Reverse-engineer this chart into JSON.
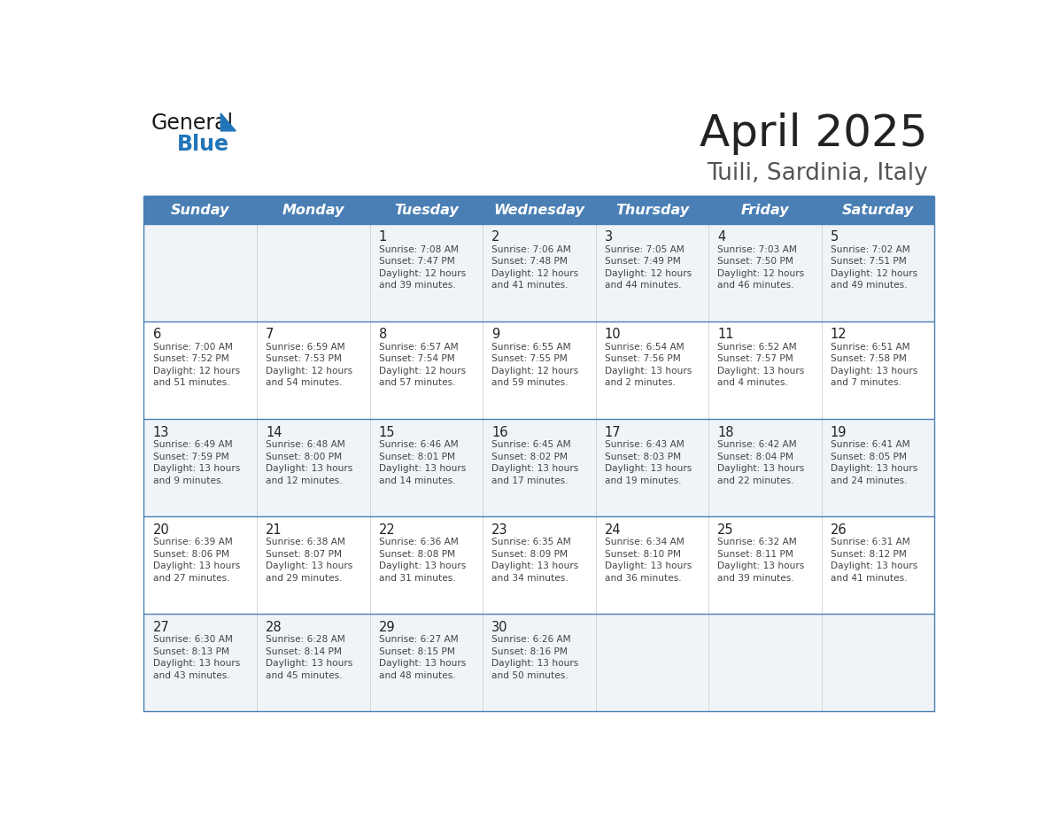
{
  "title": "April 2025",
  "subtitle": "Tuili, Sardinia, Italy",
  "header_bg_color": "#4a7fb5",
  "header_text_color": "#ffffff",
  "day_names": [
    "Sunday",
    "Monday",
    "Tuesday",
    "Wednesday",
    "Thursday",
    "Friday",
    "Saturday"
  ],
  "row_bg_light": "#f0f4f8",
  "row_bg_white": "#ffffff",
  "cell_border_color": "#4a7fb5",
  "day_number_color": "#222222",
  "day_text_color": "#444444",
  "title_color": "#222222",
  "subtitle_color": "#555555",
  "weeks": [
    {
      "days": [
        {
          "day": null,
          "col": 0
        },
        {
          "day": null,
          "col": 1
        },
        {
          "day": 1,
          "col": 2,
          "sunrise": "7:08 AM",
          "sunset": "7:47 PM",
          "daylight": "12 hours and 39 minutes."
        },
        {
          "day": 2,
          "col": 3,
          "sunrise": "7:06 AM",
          "sunset": "7:48 PM",
          "daylight": "12 hours and 41 minutes."
        },
        {
          "day": 3,
          "col": 4,
          "sunrise": "7:05 AM",
          "sunset": "7:49 PM",
          "daylight": "12 hours and 44 minutes."
        },
        {
          "day": 4,
          "col": 5,
          "sunrise": "7:03 AM",
          "sunset": "7:50 PM",
          "daylight": "12 hours and 46 minutes."
        },
        {
          "day": 5,
          "col": 6,
          "sunrise": "7:02 AM",
          "sunset": "7:51 PM",
          "daylight": "12 hours and 49 minutes."
        }
      ]
    },
    {
      "days": [
        {
          "day": 6,
          "col": 0,
          "sunrise": "7:00 AM",
          "sunset": "7:52 PM",
          "daylight": "12 hours and 51 minutes."
        },
        {
          "day": 7,
          "col": 1,
          "sunrise": "6:59 AM",
          "sunset": "7:53 PM",
          "daylight": "12 hours and 54 minutes."
        },
        {
          "day": 8,
          "col": 2,
          "sunrise": "6:57 AM",
          "sunset": "7:54 PM",
          "daylight": "12 hours and 57 minutes."
        },
        {
          "day": 9,
          "col": 3,
          "sunrise": "6:55 AM",
          "sunset": "7:55 PM",
          "daylight": "12 hours and 59 minutes."
        },
        {
          "day": 10,
          "col": 4,
          "sunrise": "6:54 AM",
          "sunset": "7:56 PM",
          "daylight": "13 hours and 2 minutes."
        },
        {
          "day": 11,
          "col": 5,
          "sunrise": "6:52 AM",
          "sunset": "7:57 PM",
          "daylight": "13 hours and 4 minutes."
        },
        {
          "day": 12,
          "col": 6,
          "sunrise": "6:51 AM",
          "sunset": "7:58 PM",
          "daylight": "13 hours and 7 minutes."
        }
      ]
    },
    {
      "days": [
        {
          "day": 13,
          "col": 0,
          "sunrise": "6:49 AM",
          "sunset": "7:59 PM",
          "daylight": "13 hours and 9 minutes."
        },
        {
          "day": 14,
          "col": 1,
          "sunrise": "6:48 AM",
          "sunset": "8:00 PM",
          "daylight": "13 hours and 12 minutes."
        },
        {
          "day": 15,
          "col": 2,
          "sunrise": "6:46 AM",
          "sunset": "8:01 PM",
          "daylight": "13 hours and 14 minutes."
        },
        {
          "day": 16,
          "col": 3,
          "sunrise": "6:45 AM",
          "sunset": "8:02 PM",
          "daylight": "13 hours and 17 minutes."
        },
        {
          "day": 17,
          "col": 4,
          "sunrise": "6:43 AM",
          "sunset": "8:03 PM",
          "daylight": "13 hours and 19 minutes."
        },
        {
          "day": 18,
          "col": 5,
          "sunrise": "6:42 AM",
          "sunset": "8:04 PM",
          "daylight": "13 hours and 22 minutes."
        },
        {
          "day": 19,
          "col": 6,
          "sunrise": "6:41 AM",
          "sunset": "8:05 PM",
          "daylight": "13 hours and 24 minutes."
        }
      ]
    },
    {
      "days": [
        {
          "day": 20,
          "col": 0,
          "sunrise": "6:39 AM",
          "sunset": "8:06 PM",
          "daylight": "13 hours and 27 minutes."
        },
        {
          "day": 21,
          "col": 1,
          "sunrise": "6:38 AM",
          "sunset": "8:07 PM",
          "daylight": "13 hours and 29 minutes."
        },
        {
          "day": 22,
          "col": 2,
          "sunrise": "6:36 AM",
          "sunset": "8:08 PM",
          "daylight": "13 hours and 31 minutes."
        },
        {
          "day": 23,
          "col": 3,
          "sunrise": "6:35 AM",
          "sunset": "8:09 PM",
          "daylight": "13 hours and 34 minutes."
        },
        {
          "day": 24,
          "col": 4,
          "sunrise": "6:34 AM",
          "sunset": "8:10 PM",
          "daylight": "13 hours and 36 minutes."
        },
        {
          "day": 25,
          "col": 5,
          "sunrise": "6:32 AM",
          "sunset": "8:11 PM",
          "daylight": "13 hours and 39 minutes."
        },
        {
          "day": 26,
          "col": 6,
          "sunrise": "6:31 AM",
          "sunset": "8:12 PM",
          "daylight": "13 hours and 41 minutes."
        }
      ]
    },
    {
      "days": [
        {
          "day": 27,
          "col": 0,
          "sunrise": "6:30 AM",
          "sunset": "8:13 PM",
          "daylight": "13 hours and 43 minutes."
        },
        {
          "day": 28,
          "col": 1,
          "sunrise": "6:28 AM",
          "sunset": "8:14 PM",
          "daylight": "13 hours and 45 minutes."
        },
        {
          "day": 29,
          "col": 2,
          "sunrise": "6:27 AM",
          "sunset": "8:15 PM",
          "daylight": "13 hours and 48 minutes."
        },
        {
          "day": 30,
          "col": 3,
          "sunrise": "6:26 AM",
          "sunset": "8:16 PM",
          "daylight": "13 hours and 50 minutes."
        },
        {
          "day": null,
          "col": 4
        },
        {
          "day": null,
          "col": 5
        },
        {
          "day": null,
          "col": 6
        }
      ]
    }
  ]
}
